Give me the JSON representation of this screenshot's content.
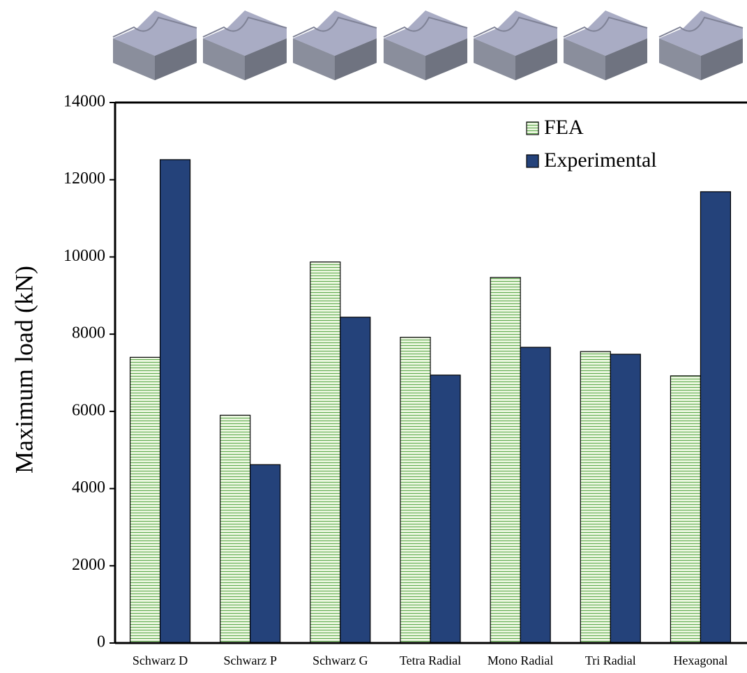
{
  "chart_data": {
    "type": "bar",
    "y_label": "Maximum load (kN)",
    "categories": [
      "Schwarz D",
      "Schwarz P",
      "Schwarz G",
      "Tetra Radial",
      "Mono Radial",
      "Tri Radial",
      "Hexagonal"
    ],
    "series": [
      {
        "name": "FEA",
        "color": "#eaf6de",
        "values": [
          7400,
          5900,
          9870,
          7920,
          9470,
          7550,
          6920
        ]
      },
      {
        "name": "Experimental",
        "color": "#24427a",
        "values": [
          12520,
          4620,
          8440,
          6940,
          7660,
          7480,
          11690
        ]
      }
    ],
    "ylim": [
      0,
      14000
    ],
    "yticks": [
      0,
      2000,
      4000,
      6000,
      8000,
      10000,
      12000,
      14000
    ],
    "grid": false,
    "legend": "upper right"
  }
}
